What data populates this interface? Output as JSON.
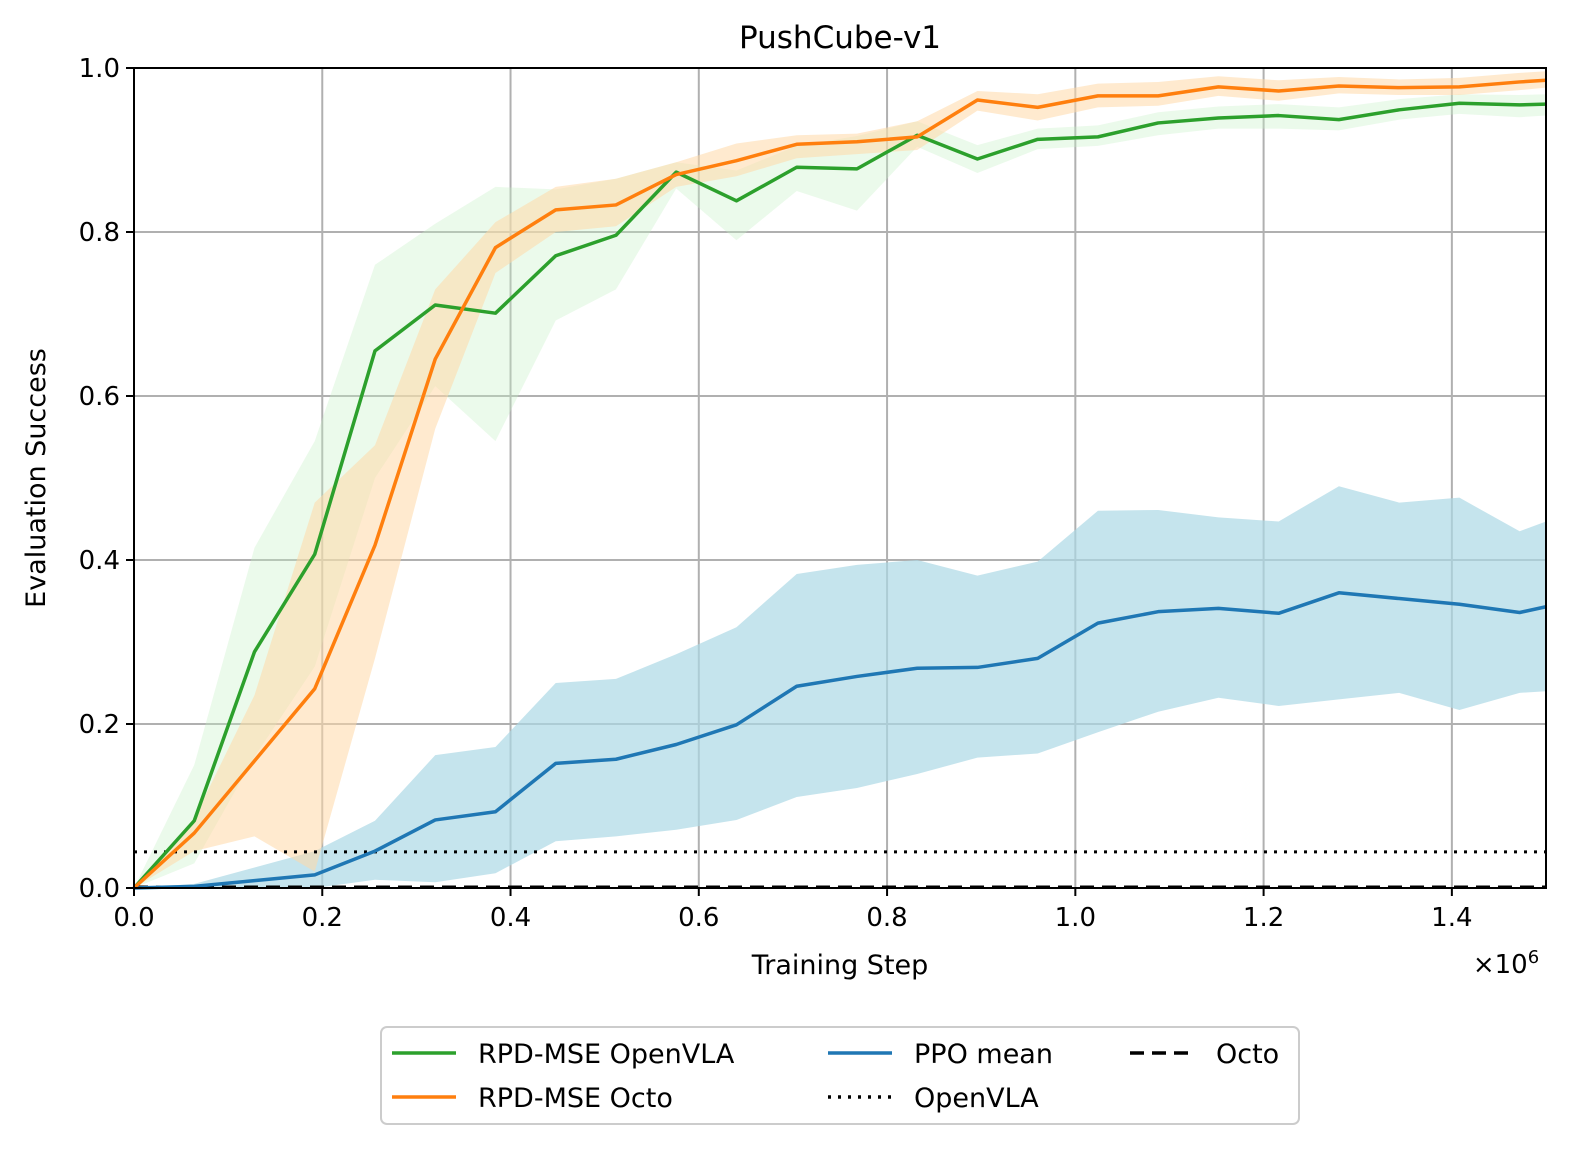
{
  "chart_data": {
    "type": "line",
    "title": "PushCube-v1",
    "xlabel": "Training Step",
    "ylabel": "Evaluation Success",
    "x_multiplier_label": "×10",
    "x_multiplier_exp": "6",
    "xlim": [
      0,
      1.5
    ],
    "ylim": [
      0,
      1.0
    ],
    "xticks": [
      0.0,
      0.2,
      0.4,
      0.6,
      0.8,
      1.0,
      1.2,
      1.4
    ],
    "xtick_labels": [
      "0.0",
      "0.2",
      "0.4",
      "0.6",
      "0.8",
      "1.0",
      "1.2",
      "1.4"
    ],
    "yticks": [
      0.0,
      0.2,
      0.4,
      0.6,
      0.8,
      1.0
    ],
    "ytick_labels": [
      "0.0",
      "0.2",
      "0.4",
      "0.6",
      "0.8",
      "1.0"
    ],
    "grid": true,
    "legend_position": "bottom-center-outside",
    "series": [
      {
        "name": "PPO mean",
        "color": "#1f77b4",
        "band_color": "#add8e6",
        "x": [
          0.0,
          0.064,
          0.128,
          0.192,
          0.256,
          0.32,
          0.384,
          0.448,
          0.512,
          0.576,
          0.64,
          0.704,
          0.768,
          0.832,
          0.896,
          0.96,
          1.024,
          1.088,
          1.152,
          1.216,
          1.28,
          1.344,
          1.408,
          1.472,
          1.5
        ],
        "y": [
          0.0,
          0.002,
          0.009,
          0.016,
          0.045,
          0.083,
          0.093,
          0.152,
          0.157,
          0.175,
          0.199,
          0.246,
          0.258,
          0.268,
          0.269,
          0.28,
          0.323,
          0.337,
          0.341,
          0.335,
          0.36,
          0.353,
          0.346,
          0.336,
          0.343
        ],
        "y_low": [
          0.0,
          0.0,
          0.0,
          0.0,
          0.01,
          0.007,
          0.018,
          0.057,
          0.063,
          0.071,
          0.083,
          0.111,
          0.122,
          0.139,
          0.159,
          0.164,
          0.19,
          0.215,
          0.232,
          0.222,
          0.23,
          0.238,
          0.217,
          0.238,
          0.24
        ],
        "y_high": [
          0.0,
          0.005,
          0.025,
          0.045,
          0.082,
          0.162,
          0.172,
          0.25,
          0.255,
          0.285,
          0.318,
          0.383,
          0.394,
          0.4,
          0.381,
          0.398,
          0.46,
          0.461,
          0.452,
          0.447,
          0.49,
          0.47,
          0.476,
          0.435,
          0.447
        ]
      },
      {
        "name": "RPD-MSE OpenVLA",
        "color": "#2ca02c",
        "band_color": "#c6f0c6",
        "x": [
          0.0,
          0.064,
          0.128,
          0.192,
          0.256,
          0.32,
          0.384,
          0.448,
          0.512,
          0.576,
          0.64,
          0.704,
          0.768,
          0.832,
          0.896,
          0.96,
          1.024,
          1.088,
          1.152,
          1.216,
          1.28,
          1.344,
          1.408,
          1.472,
          1.5
        ],
        "y": [
          0.0,
          0.082,
          0.288,
          0.407,
          0.655,
          0.711,
          0.701,
          0.771,
          0.796,
          0.873,
          0.838,
          0.879,
          0.877,
          0.918,
          0.889,
          0.913,
          0.916,
          0.933,
          0.939,
          0.942,
          0.937,
          0.949,
          0.957,
          0.955,
          0.956
        ],
        "y_low": [
          0.0,
          0.03,
          0.16,
          0.27,
          0.5,
          0.612,
          0.545,
          0.692,
          0.73,
          0.853,
          0.79,
          0.85,
          0.826,
          0.904,
          0.872,
          0.901,
          0.905,
          0.918,
          0.926,
          0.926,
          0.924,
          0.937,
          0.944,
          0.94,
          0.942
        ],
        "y_high": [
          0.0,
          0.15,
          0.415,
          0.545,
          0.76,
          0.81,
          0.855,
          0.852,
          0.865,
          0.885,
          0.875,
          0.905,
          0.917,
          0.935,
          0.906,
          0.926,
          0.93,
          0.946,
          0.953,
          0.956,
          0.952,
          0.962,
          0.968,
          0.967,
          0.968
        ]
      },
      {
        "name": "RPD-MSE Octo",
        "color": "#ff7f0e",
        "band_color": "#ffd9a8",
        "x": [
          0.0,
          0.064,
          0.128,
          0.192,
          0.256,
          0.32,
          0.384,
          0.448,
          0.512,
          0.576,
          0.64,
          0.704,
          0.768,
          0.832,
          0.896,
          0.96,
          1.024,
          1.088,
          1.152,
          1.216,
          1.28,
          1.344,
          1.408,
          1.472,
          1.5
        ],
        "y": [
          0.0,
          0.067,
          0.155,
          0.243,
          0.418,
          0.645,
          0.781,
          0.827,
          0.833,
          0.87,
          0.887,
          0.907,
          0.91,
          0.916,
          0.961,
          0.952,
          0.966,
          0.966,
          0.977,
          0.972,
          0.978,
          0.976,
          0.977,
          0.983,
          0.985
        ],
        "y_low": [
          0.0,
          0.045,
          0.063,
          0.02,
          0.28,
          0.56,
          0.75,
          0.8,
          0.807,
          0.855,
          0.868,
          0.89,
          0.895,
          0.9,
          0.948,
          0.936,
          0.952,
          0.954,
          0.966,
          0.96,
          0.969,
          0.967,
          0.967,
          0.973,
          0.976
        ],
        "y_high": [
          0.0,
          0.085,
          0.235,
          0.47,
          0.54,
          0.73,
          0.812,
          0.855,
          0.865,
          0.885,
          0.908,
          0.918,
          0.92,
          0.935,
          0.972,
          0.968,
          0.981,
          0.983,
          0.99,
          0.985,
          0.989,
          0.986,
          0.988,
          0.994,
          0.996
        ]
      }
    ],
    "reference_lines": [
      {
        "name": "OpenVLA",
        "y": 0.044,
        "style": "dotted",
        "color": "#000000"
      },
      {
        "name": "Octo",
        "y": 0.0,
        "style": "dashed",
        "color": "#000000"
      }
    ],
    "legend": [
      {
        "label": "RPD-MSE OpenVLA",
        "color": "#2ca02c",
        "style": "solid"
      },
      {
        "label": "RPD-MSE Octo",
        "color": "#ff7f0e",
        "style": "solid"
      },
      {
        "label": "PPO mean",
        "color": "#1f77b4",
        "style": "solid"
      },
      {
        "label": "OpenVLA",
        "color": "#000000",
        "style": "dotted"
      },
      {
        "label": "Octo",
        "color": "#000000",
        "style": "dashed"
      }
    ]
  }
}
